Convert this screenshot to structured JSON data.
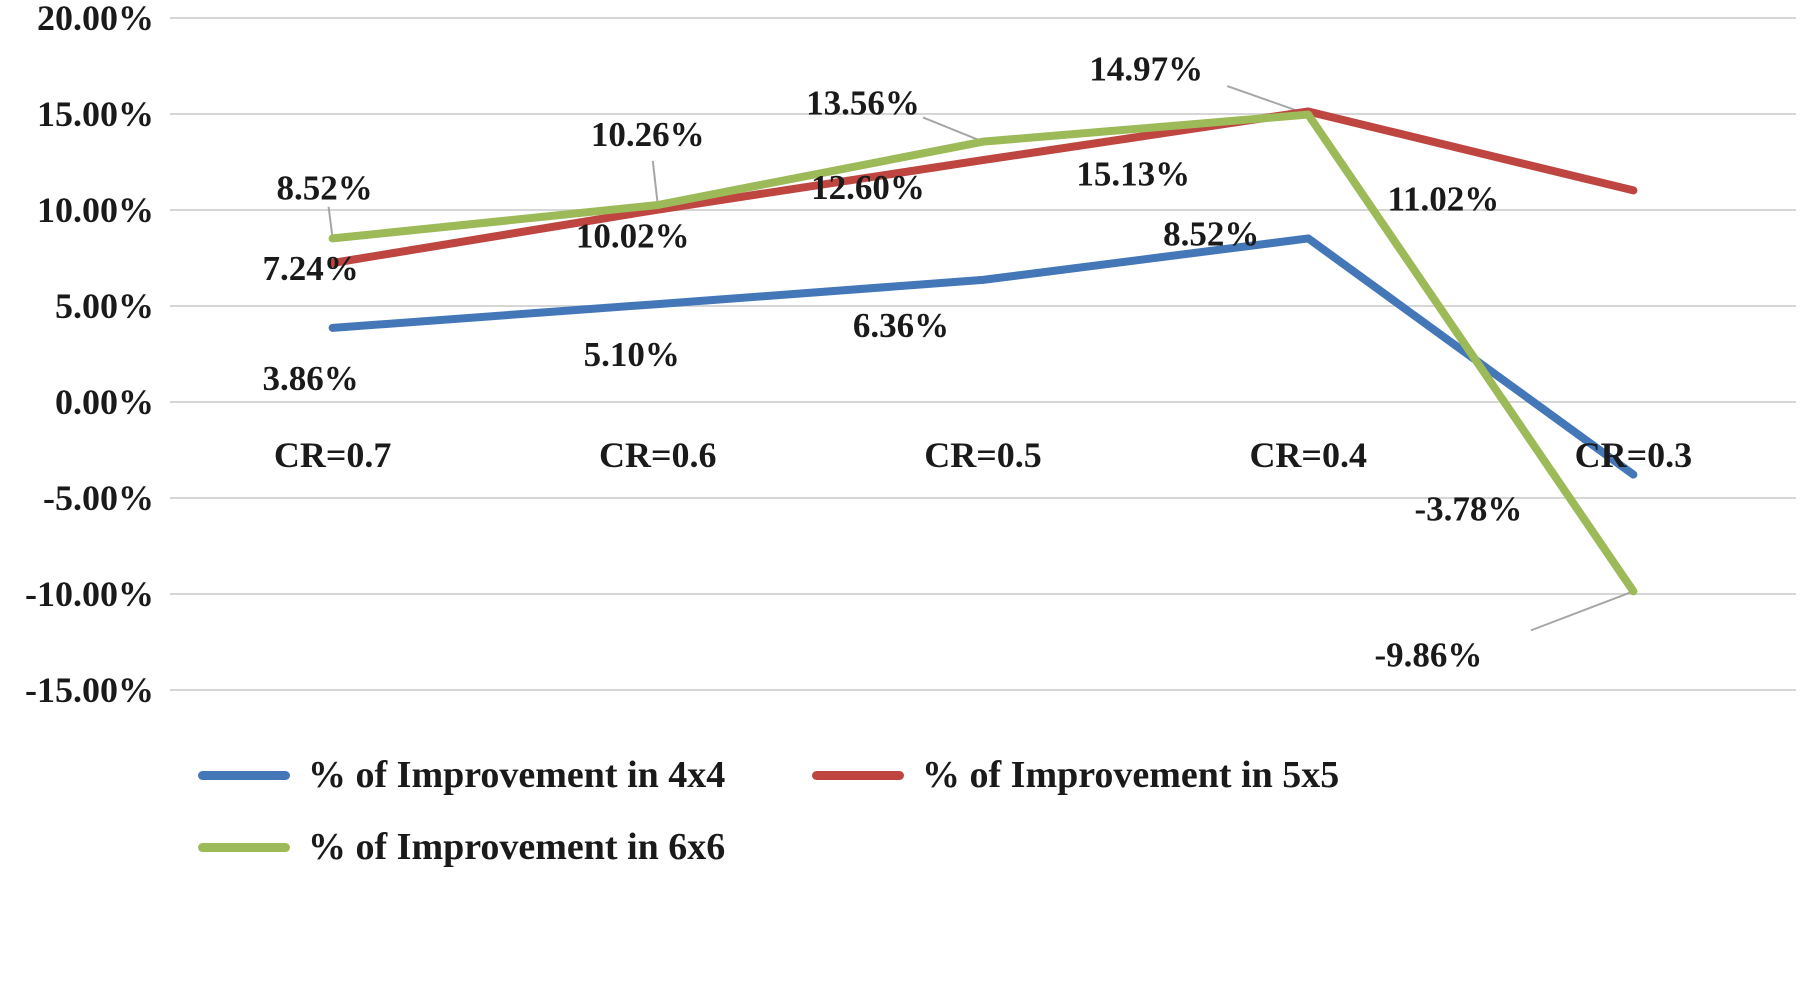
{
  "chart_data": {
    "type": "line",
    "title": "",
    "categories": [
      "CR=0.7",
      "CR=0.6",
      "CR=0.5",
      "CR=0.4",
      "CR=0.3"
    ],
    "series": [
      {
        "name": "% of Improvement in 4x4",
        "color": "#4377b8",
        "values": [
          3.86,
          5.1,
          6.36,
          8.52,
          -3.78
        ],
        "point_labels": [
          "3.86%",
          "5.10%",
          "6.36%",
          "8.52%",
          "-3.78%"
        ],
        "label_offsets": [
          [
            -22,
            50
          ],
          [
            -26,
            50
          ],
          [
            -82,
            45
          ],
          [
            -97,
            -5
          ],
          [
            -165,
            34
          ]
        ],
        "label_leaders": [
          false,
          false,
          false,
          false,
          false
        ]
      },
      {
        "name": "% of Improvement in 5x5",
        "color": "#bf4540",
        "values": [
          7.24,
          10.02,
          12.6,
          15.13,
          11.02
        ],
        "point_labels": [
          "7.24%",
          "10.02%",
          "12.60%",
          "15.13%",
          "11.02%"
        ],
        "label_offsets": [
          [
            -22,
            5
          ],
          [
            -25,
            26
          ],
          [
            -115,
            27
          ],
          [
            -175,
            62
          ],
          [
            -190,
            8
          ]
        ],
        "label_leaders": [
          false,
          false,
          false,
          false,
          false
        ]
      },
      {
        "name": "% of Improvement in 6x6",
        "color": "#9cba58",
        "values": [
          8.52,
          10.26,
          13.56,
          14.97,
          -9.86
        ],
        "point_labels": [
          "8.52%",
          "10.26%",
          "13.56%",
          "14.97%",
          "-9.86%"
        ],
        "label_offsets": [
          [
            -8,
            -51
          ],
          [
            -10,
            -71
          ],
          [
            -120,
            -39
          ],
          [
            -162,
            -46
          ],
          [
            -205,
            63
          ]
        ],
        "label_leaders": [
          true,
          true,
          true,
          true,
          true
        ]
      }
    ],
    "y_axis": {
      "ticks": [
        {
          "value": 20,
          "label": "20.00%"
        },
        {
          "value": 15,
          "label": "15.00%"
        },
        {
          "value": 10,
          "label": "10.00%"
        },
        {
          "value": 5,
          "label": "5.00%"
        },
        {
          "value": 0,
          "label": "0.00%"
        },
        {
          "value": -5,
          "label": "-5.00%"
        },
        {
          "value": -10,
          "label": "-10.00%"
        },
        {
          "value": -15,
          "label": "-15.00%"
        }
      ],
      "ylim": [
        -15,
        20
      ]
    },
    "grid": true,
    "grid_color": "#d6d6d6",
    "leader_color": "#a6a6a6",
    "text_color": "#1a1a1a",
    "legend_position": "bottom"
  }
}
